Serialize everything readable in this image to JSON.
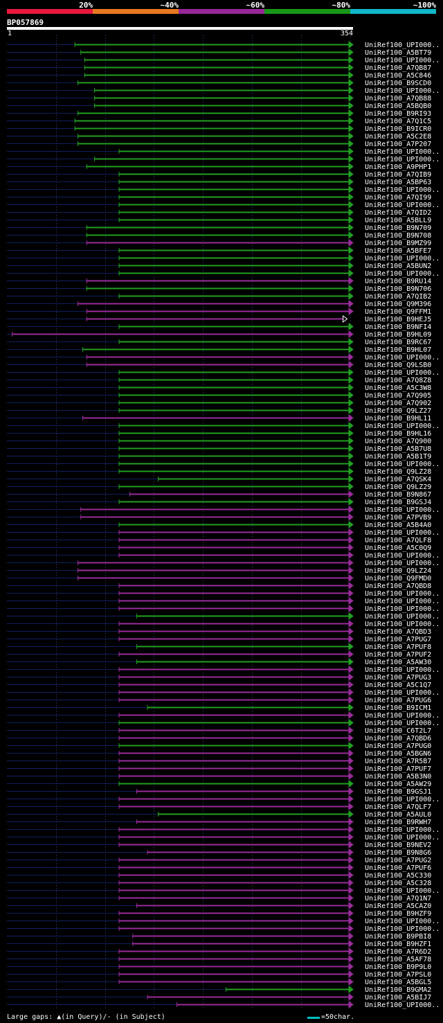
{
  "query": {
    "id": "BP057869",
    "start": "1",
    "end": "354"
  },
  "legend": {
    "labels": [
      "20%",
      "~40%",
      "~60%",
      "~80%",
      "~100%"
    ],
    "colors": [
      "#e8183c",
      "#e87820",
      "#982898",
      "#189818",
      "#10b8c8"
    ]
  },
  "footer": {
    "gaps_note": "Large gaps: ▲(in Query)/- (in Subject)",
    "scale_note": "=50char."
  },
  "chart_data": {
    "type": "alignment",
    "query_length": 354,
    "colors": {
      "green": "#22a022",
      "purple": "#9a2c9a",
      "query_line": "#102060"
    },
    "hits": [
      {
        "label": "UniRef100_UPI000..",
        "start": 70,
        "end": 354,
        "color": "green"
      },
      {
        "label": "UniRef100_A5BT79",
        "start": 76,
        "end": 354,
        "color": "green"
      },
      {
        "label": "UniRef100_UPI000..",
        "start": 80,
        "end": 354,
        "color": "green"
      },
      {
        "label": "UniRef100_A7QB87",
        "start": 80,
        "end": 354,
        "color": "green"
      },
      {
        "label": "UniRef100_A5C846",
        "start": 80,
        "end": 354,
        "color": "green"
      },
      {
        "label": "UniRef100_B9SCD0",
        "start": 73,
        "end": 354,
        "color": "green"
      },
      {
        "label": "UniRef100_UPI000..",
        "start": 90,
        "end": 354,
        "color": "green"
      },
      {
        "label": "UniRef100_A7QB88",
        "start": 90,
        "end": 354,
        "color": "green"
      },
      {
        "label": "UniRef100_A5BQB0",
        "start": 90,
        "end": 354,
        "color": "green"
      },
      {
        "label": "UniRef100_B9RI93",
        "start": 73,
        "end": 354,
        "color": "green"
      },
      {
        "label": "UniRef100_A7Q1C5",
        "start": 70,
        "end": 354,
        "color": "green"
      },
      {
        "label": "UniRef100_B9ICR0",
        "start": 70,
        "end": 354,
        "color": "green"
      },
      {
        "label": "UniRef100_A5C2E8",
        "start": 73,
        "end": 354,
        "color": "green"
      },
      {
        "label": "UniRef100_A7P207",
        "start": 73,
        "end": 354,
        "color": "green"
      },
      {
        "label": "UniRef100_UPI000..",
        "start": 115,
        "end": 354,
        "color": "green"
      },
      {
        "label": "UniRef100_UPI000..",
        "start": 90,
        "end": 354,
        "color": "green"
      },
      {
        "label": "UniRef100_A9PHP1",
        "start": 82,
        "end": 354,
        "color": "green"
      },
      {
        "label": "UniRef100_A7QIB9",
        "start": 115,
        "end": 354,
        "color": "green"
      },
      {
        "label": "UniRef100_A5BP63",
        "start": 115,
        "end": 354,
        "color": "green"
      },
      {
        "label": "UniRef100_UPI000..",
        "start": 115,
        "end": 354,
        "color": "green"
      },
      {
        "label": "UniRef100_A7QI99",
        "start": 115,
        "end": 354,
        "color": "green"
      },
      {
        "label": "UniRef100_UPI000..",
        "start": 115,
        "end": 354,
        "color": "green"
      },
      {
        "label": "UniRef100_A7QID2",
        "start": 115,
        "end": 354,
        "color": "green"
      },
      {
        "label": "UniRef100_A5BLL9",
        "start": 115,
        "end": 354,
        "color": "green"
      },
      {
        "label": "UniRef100_B9N709",
        "start": 82,
        "end": 354,
        "color": "green"
      },
      {
        "label": "UniRef100_B9N708",
        "start": 82,
        "end": 354,
        "color": "green"
      },
      {
        "label": "UniRef100_B9MZ99",
        "start": 82,
        "end": 354,
        "color": "purple"
      },
      {
        "label": "UniRef100_A5BFE7",
        "start": 115,
        "end": 354,
        "color": "green"
      },
      {
        "label": "UniRef100_UPI000..",
        "start": 115,
        "end": 354,
        "color": "green"
      },
      {
        "label": "UniRef100_A5BUN2",
        "start": 115,
        "end": 354,
        "color": "green"
      },
      {
        "label": "UniRef100_UPI000..",
        "start": 115,
        "end": 354,
        "color": "green"
      },
      {
        "label": "UniRef100_B9RU14",
        "start": 82,
        "end": 354,
        "color": "purple"
      },
      {
        "label": "UniRef100_B9N706",
        "start": 82,
        "end": 354,
        "color": "green"
      },
      {
        "label": "UniRef100_A7QIB2",
        "start": 115,
        "end": 354,
        "color": "green"
      },
      {
        "label": "UniRef100_Q9M396",
        "start": 73,
        "end": 354,
        "color": "purple"
      },
      {
        "label": "UniRef100_Q9FFM1",
        "start": 82,
        "end": 354,
        "color": "purple"
      },
      {
        "label": "UniRef100_B9HEJ5",
        "start": 82,
        "end": 348,
        "color": "purple"
      },
      {
        "label": "UniRef100_B9NFI4",
        "start": 115,
        "end": 354,
        "color": "green"
      },
      {
        "label": "UniRef100_B9HL09",
        "start": 6,
        "end": 354,
        "color": "purple"
      },
      {
        "label": "UniRef100_B9RC67",
        "start": 115,
        "end": 354,
        "color": "green"
      },
      {
        "label": "UniRef100_B9HL07",
        "start": 78,
        "end": 354,
        "color": "green"
      },
      {
        "label": "UniRef100_UPI000..",
        "start": 82,
        "end": 354,
        "color": "purple"
      },
      {
        "label": "UniRef100_Q9LSB0",
        "start": 82,
        "end": 354,
        "color": "purple"
      },
      {
        "label": "UniRef100_UPI000..",
        "start": 115,
        "end": 354,
        "color": "green"
      },
      {
        "label": "UniRef100_A7Q8Z8",
        "start": 115,
        "end": 354,
        "color": "green"
      },
      {
        "label": "UniRef100_A5C3W8",
        "start": 115,
        "end": 354,
        "color": "green"
      },
      {
        "label": "UniRef100_A7Q905",
        "start": 115,
        "end": 354,
        "color": "green"
      },
      {
        "label": "UniRef100_A7Q902",
        "start": 115,
        "end": 354,
        "color": "green"
      },
      {
        "label": "UniRef100_Q9LZ27",
        "start": 115,
        "end": 354,
        "color": "green"
      },
      {
        "label": "UniRef100_B9HL11",
        "start": 78,
        "end": 354,
        "color": "purple"
      },
      {
        "label": "UniRef100_UPI000..",
        "start": 115,
        "end": 354,
        "color": "green"
      },
      {
        "label": "UniRef100_B9HL16",
        "start": 115,
        "end": 354,
        "color": "green"
      },
      {
        "label": "UniRef100_A7Q900",
        "start": 115,
        "end": 354,
        "color": "green"
      },
      {
        "label": "UniRef100_A5B7U8",
        "start": 115,
        "end": 354,
        "color": "green"
      },
      {
        "label": "UniRef100_A5B1T9",
        "start": 115,
        "end": 354,
        "color": "green"
      },
      {
        "label": "UniRef100_UPI000..",
        "start": 115,
        "end": 354,
        "color": "green"
      },
      {
        "label": "UniRef100_Q9LZ28",
        "start": 115,
        "end": 354,
        "color": "green"
      },
      {
        "label": "UniRef100_A7QSK4",
        "start": 155,
        "end": 354,
        "color": "green"
      },
      {
        "label": "UniRef100_Q9LZ29",
        "start": 115,
        "end": 354,
        "color": "green"
      },
      {
        "label": "UniRef100_B9N867",
        "start": 126,
        "end": 354,
        "color": "purple"
      },
      {
        "label": "UniRef100_B9GSJ4",
        "start": 115,
        "end": 354,
        "color": "green"
      },
      {
        "label": "UniRef100_UPI000..",
        "start": 76,
        "end": 354,
        "color": "purple"
      },
      {
        "label": "UniRef100_A7PVB9",
        "start": 76,
        "end": 354,
        "color": "purple"
      },
      {
        "label": "UniRef100_A5B4A0",
        "start": 115,
        "end": 354,
        "color": "green"
      },
      {
        "label": "UniRef100_UPI000..",
        "start": 115,
        "end": 354,
        "color": "purple"
      },
      {
        "label": "UniRef100_A7QLF8",
        "start": 115,
        "end": 354,
        "color": "purple"
      },
      {
        "label": "UniRef100_A5C0Q9",
        "start": 115,
        "end": 354,
        "color": "purple"
      },
      {
        "label": "UniRef100_UPI000..",
        "start": 115,
        "end": 354,
        "color": "purple"
      },
      {
        "label": "UniRef100_UPI000..",
        "start": 73,
        "end": 354,
        "color": "purple"
      },
      {
        "label": "UniRef100_Q9LZ24",
        "start": 73,
        "end": 354,
        "color": "purple"
      },
      {
        "label": "UniRef100_Q9FMD0",
        "start": 73,
        "end": 354,
        "color": "purple"
      },
      {
        "label": "UniRef100_A7QBD8",
        "start": 115,
        "end": 354,
        "color": "purple"
      },
      {
        "label": "UniRef100_UPI000..",
        "start": 115,
        "end": 354,
        "color": "purple"
      },
      {
        "label": "UniRef100_UPI000..",
        "start": 115,
        "end": 354,
        "color": "purple"
      },
      {
        "label": "UniRef100_UPI000..",
        "start": 115,
        "end": 354,
        "color": "purple"
      },
      {
        "label": "UniRef100_UPI000..",
        "start": 133,
        "end": 354,
        "color": "green"
      },
      {
        "label": "UniRef100_UPI000..",
        "start": 115,
        "end": 354,
        "color": "purple"
      },
      {
        "label": "UniRef100_A7QBD3",
        "start": 115,
        "end": 354,
        "color": "purple"
      },
      {
        "label": "UniRef100_A7PUG7",
        "start": 115,
        "end": 354,
        "color": "purple"
      },
      {
        "label": "UniRef100_A7PUF8",
        "start": 133,
        "end": 354,
        "color": "green"
      },
      {
        "label": "UniRef100_A7PUF2",
        "start": 115,
        "end": 354,
        "color": "purple"
      },
      {
        "label": "UniRef100_A5AW30",
        "start": 133,
        "end": 354,
        "color": "green"
      },
      {
        "label": "UniRef100_UPI000..",
        "start": 115,
        "end": 354,
        "color": "purple"
      },
      {
        "label": "UniRef100_A7PUG3",
        "start": 115,
        "end": 354,
        "color": "purple"
      },
      {
        "label": "UniRef100_A5C1Q7",
        "start": 115,
        "end": 354,
        "color": "purple"
      },
      {
        "label": "UniRef100_UPI000..",
        "start": 115,
        "end": 354,
        "color": "purple"
      },
      {
        "label": "UniRef100_A7PUG6",
        "start": 115,
        "end": 354,
        "color": "purple"
      },
      {
        "label": "UniRef100_B9ICM1",
        "start": 144,
        "end": 354,
        "color": "green"
      },
      {
        "label": "UniRef100_UPI000..",
        "start": 115,
        "end": 354,
        "color": "purple"
      },
      {
        "label": "UniRef100_UPI000..",
        "start": 115,
        "end": 354,
        "color": "green"
      },
      {
        "label": "UniRef100_C6T2L7",
        "start": 115,
        "end": 354,
        "color": "purple"
      },
      {
        "label": "UniRef100_A7QBD6",
        "start": 115,
        "end": 354,
        "color": "purple"
      },
      {
        "label": "UniRef100_A7PUG0",
        "start": 115,
        "end": 354,
        "color": "green"
      },
      {
        "label": "UniRef100_A5BGN6",
        "start": 115,
        "end": 354,
        "color": "purple"
      },
      {
        "label": "UniRef100_A7R5B7",
        "start": 115,
        "end": 354,
        "color": "purple"
      },
      {
        "label": "UniRef100_A7PUF7",
        "start": 115,
        "end": 354,
        "color": "purple"
      },
      {
        "label": "UniRef100_A5B3N0",
        "start": 115,
        "end": 354,
        "color": "purple"
      },
      {
        "label": "UniRef100_A5AW29",
        "start": 115,
        "end": 354,
        "color": "green"
      },
      {
        "label": "UniRef100_B9GSJ1",
        "start": 133,
        "end": 354,
        "color": "purple"
      },
      {
        "label": "UniRef100_UPI000..",
        "start": 115,
        "end": 354,
        "color": "purple"
      },
      {
        "label": "UniRef100_A7QLF7",
        "start": 115,
        "end": 354,
        "color": "purple"
      },
      {
        "label": "UniRef100_A5AUL0",
        "start": 155,
        "end": 354,
        "color": "green"
      },
      {
        "label": "UniRef100_B9RWH7",
        "start": 133,
        "end": 354,
        "color": "purple"
      },
      {
        "label": "UniRef100_UPI000..",
        "start": 115,
        "end": 354,
        "color": "purple"
      },
      {
        "label": "UniRef100_UPI000..",
        "start": 115,
        "end": 354,
        "color": "purple"
      },
      {
        "label": "UniRef100_B9NEV2",
        "start": 115,
        "end": 354,
        "color": "purple"
      },
      {
        "label": "UniRef100_B9N8G6",
        "start": 144,
        "end": 354,
        "color": "purple"
      },
      {
        "label": "UniRef100_A7PUG2",
        "start": 115,
        "end": 354,
        "color": "purple"
      },
      {
        "label": "UniRef100_A7PUF6",
        "start": 115,
        "end": 354,
        "color": "purple"
      },
      {
        "label": "UniRef100_A5C330",
        "start": 115,
        "end": 354,
        "color": "purple"
      },
      {
        "label": "UniRef100_A5C328",
        "start": 115,
        "end": 354,
        "color": "purple"
      },
      {
        "label": "UniRef100_UPI000..",
        "start": 115,
        "end": 354,
        "color": "purple"
      },
      {
        "label": "UniRef100_A7Q1N7",
        "start": 115,
        "end": 354,
        "color": "purple"
      },
      {
        "label": "UniRef100_A5CAZ0",
        "start": 133,
        "end": 354,
        "color": "purple"
      },
      {
        "label": "UniRef100_B9HZF9",
        "start": 115,
        "end": 354,
        "color": "purple"
      },
      {
        "label": "UniRef100_UPI000..",
        "start": 115,
        "end": 354,
        "color": "purple"
      },
      {
        "label": "UniRef100_UPI000..",
        "start": 115,
        "end": 354,
        "color": "purple"
      },
      {
        "label": "UniRef100_B9PBI8",
        "start": 129,
        "end": 354,
        "color": "purple"
      },
      {
        "label": "UniRef100_B9HZF1",
        "start": 129,
        "end": 354,
        "color": "purple"
      },
      {
        "label": "UniRef100_A7R6D2",
        "start": 115,
        "end": 354,
        "color": "purple"
      },
      {
        "label": "UniRef100_A5AF78",
        "start": 115,
        "end": 354,
        "color": "purple"
      },
      {
        "label": "UniRef100_B9P9L0",
        "start": 115,
        "end": 354,
        "color": "purple"
      },
      {
        "label": "UniRef100_A7PSL0",
        "start": 115,
        "end": 354,
        "color": "purple"
      },
      {
        "label": "UniRef100_A5BGL5",
        "start": 115,
        "end": 354,
        "color": "purple"
      },
      {
        "label": "UniRef100_B9GMA2",
        "start": 224,
        "end": 354,
        "color": "green"
      },
      {
        "label": "UniRef100_A5BIJ7",
        "start": 144,
        "end": 354,
        "color": "purple"
      },
      {
        "label": "UniRef100_UPI000..",
        "start": 174,
        "end": 354,
        "color": "purple"
      }
    ]
  }
}
